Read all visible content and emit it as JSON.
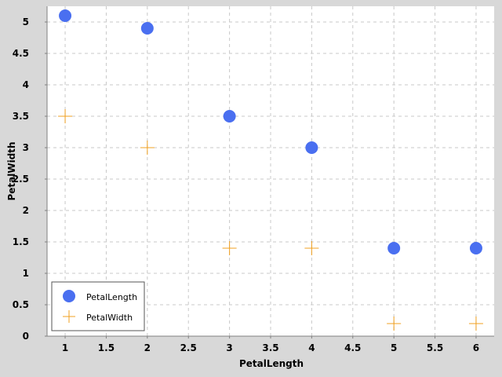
{
  "chart_data": {
    "type": "scatter",
    "xlabel": "PetalLength",
    "ylabel": "PetalWidth",
    "xlim": [
      0.78,
      6.22
    ],
    "ylim": [
      0,
      5.25
    ],
    "x_ticks": [
      1,
      1.5,
      2,
      2.5,
      3,
      3.5,
      4,
      4.5,
      5,
      5.5,
      6
    ],
    "y_ticks": [
      0,
      0.5,
      1,
      1.5,
      2,
      2.5,
      3,
      3.5,
      4,
      4.5,
      5
    ],
    "grid": true,
    "legend_position": "bottom-left",
    "series": [
      {
        "name": "PetalLength",
        "marker": "circle",
        "color": "#4a6ff0",
        "points": [
          [
            1,
            5.1
          ],
          [
            2,
            4.9
          ],
          [
            3,
            3.5
          ],
          [
            4,
            3.0
          ],
          [
            5,
            1.4
          ],
          [
            6,
            1.4
          ]
        ]
      },
      {
        "name": "PetalWidth",
        "marker": "cross",
        "color": "#f0a020",
        "points": [
          [
            1,
            3.5
          ],
          [
            2,
            3.0
          ],
          [
            3,
            1.4
          ],
          [
            4,
            1.4
          ],
          [
            5,
            0.2
          ],
          [
            6,
            0.2
          ]
        ]
      }
    ]
  }
}
